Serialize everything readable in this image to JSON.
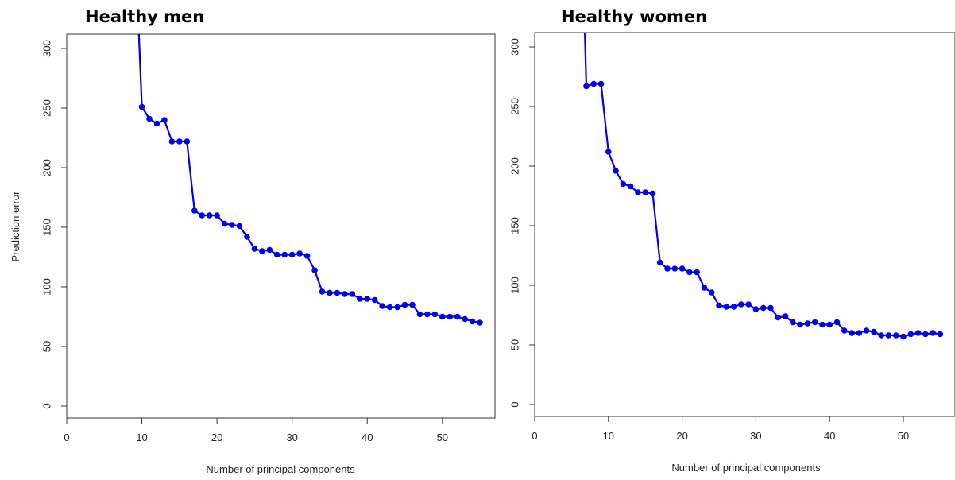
{
  "figure": {
    "ylabel": "Prediction error",
    "xlabel": "Number of principal components"
  },
  "chart_data": [
    {
      "type": "line",
      "title": "Healthy men",
      "xlabel": "Number of principal components",
      "ylabel": "Prediction error",
      "xlim": [
        0,
        57
      ],
      "ylim": [
        -10,
        312
      ],
      "xticks": [
        0,
        10,
        20,
        30,
        40,
        50
      ],
      "yticks": [
        0,
        50,
        100,
        150,
        200,
        250,
        300
      ],
      "grid": false,
      "line_color": "#0000ee",
      "series": [
        {
          "x": [
            10,
            11,
            12,
            13,
            14,
            15,
            16,
            17,
            18,
            19,
            20,
            21,
            22,
            23,
            24,
            25,
            26,
            27,
            28,
            29,
            30,
            31,
            32,
            33,
            34,
            35,
            36,
            37,
            38,
            39,
            40,
            41,
            42,
            43,
            44,
            45,
            46,
            47,
            48,
            49,
            50,
            51,
            52,
            53,
            54,
            55
          ],
          "y": [
            251,
            241,
            237,
            240,
            222,
            222,
            222,
            164,
            160,
            160,
            160,
            153,
            152,
            151,
            142,
            132,
            130,
            131,
            127,
            127,
            127,
            128,
            126,
            114,
            96,
            95,
            95,
            94,
            94,
            90,
            90,
            89,
            84,
            83,
            83,
            85,
            85,
            77,
            77,
            77,
            75,
            75,
            75,
            73,
            71,
            70
          ]
        }
      ],
      "offscale_start": {
        "x": 9.6,
        "y": 312
      }
    },
    {
      "type": "line",
      "title": "Healthy women",
      "xlabel": "Number of principal components",
      "ylabel": "",
      "xlim": [
        0,
        57
      ],
      "ylim": [
        -10,
        312
      ],
      "xticks": [
        0,
        10,
        20,
        30,
        40,
        50
      ],
      "yticks": [
        0,
        50,
        100,
        150,
        200,
        250,
        300
      ],
      "grid": false,
      "line_color": "#0000ee",
      "series": [
        {
          "x": [
            7,
            8,
            9,
            10,
            11,
            12,
            13,
            14,
            15,
            16,
            17,
            18,
            19,
            20,
            21,
            22,
            23,
            24,
            25,
            26,
            27,
            28,
            29,
            30,
            31,
            32,
            33,
            34,
            35,
            36,
            37,
            38,
            39,
            40,
            41,
            42,
            43,
            44,
            45,
            46,
            47,
            48,
            49,
            50,
            51,
            52,
            53,
            54,
            55
          ],
          "y": [
            267,
            269,
            269,
            212,
            196,
            185,
            183,
            178,
            178,
            177,
            119,
            114,
            114,
            114,
            111,
            111,
            98,
            94,
            83,
            82,
            82,
            84,
            84,
            80,
            81,
            81,
            73,
            74,
            69,
            67,
            68,
            69,
            67,
            67,
            69,
            62,
            60,
            60,
            62,
            61,
            58,
            58,
            58,
            57,
            59,
            60,
            59,
            60,
            59
          ]
        }
      ],
      "offscale_start": {
        "x": 6.8,
        "y": 312
      }
    }
  ]
}
